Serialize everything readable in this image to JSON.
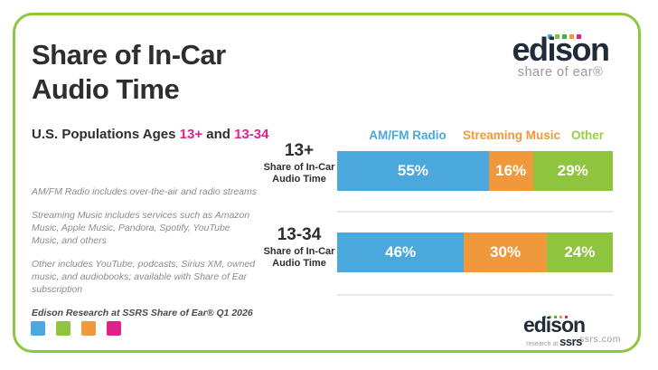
{
  "header": {
    "title_line1": "Share of In-Car",
    "title_line2": "Audio Time",
    "subtitle_prefix": "U.S. Populations Ages ",
    "subtitle_age1": "13+",
    "subtitle_and": " and ",
    "subtitle_age2": "13-34"
  },
  "notes": {
    "amfm": "AM/FM Radio includes over-the-air and radio streams",
    "streaming": "Streaming Music includes services such as Amazon Music, Apple Music, Pandora, Spotify, YouTube Music, and others",
    "other": "Other includes YouTube, podcasts, Sirius XM, owned music, and audiobooks; available with Share of Ear subscription",
    "source": "Edison Research at SSRS Share of Ear® Q1 2026"
  },
  "palette": {
    "blue": "#4AA8DC",
    "orange": "#F0993C",
    "green": "#8FC43E",
    "magenta": "#E0218A",
    "card_border": "#8DC63F",
    "navy": "#222B38",
    "legend_other_green": "#9CCA4D"
  },
  "chart_data": {
    "type": "bar",
    "stacked": true,
    "orientation": "horizontal",
    "title": "Share of In-Car Audio Time",
    "subtitle": "U.S. Populations Ages 13+ and 13-34",
    "value_suffix": "%",
    "xlim": [
      0,
      100
    ],
    "segments": [
      {
        "name": "AM/FM Radio",
        "color": "#4AA8DC"
      },
      {
        "name": "Streaming Music",
        "color": "#F0993C"
      },
      {
        "name": "Other",
        "color": "#8FC43E"
      }
    ],
    "rows": [
      {
        "category": "13+",
        "sublabel": "Share of In-Car Audio Time",
        "values": [
          55,
          16,
          29
        ]
      },
      {
        "category": "13-34",
        "sublabel": "Share of In-Car Audio Time",
        "values": [
          46,
          30,
          24
        ]
      }
    ]
  },
  "logo_top": {
    "brand": "edison",
    "tagline": "share of ear®",
    "dot_colors": [
      "#4AA8DC",
      "#7DC242",
      "#39B54A",
      "#F0993C",
      "#E0218A"
    ]
  },
  "logo_bottom": {
    "brand": "edison",
    "sub_prefix": "research at ",
    "sub_brand": "ssrs",
    "site": "ssrs.com",
    "dot_colors": [
      "#4AA8DC",
      "#7DC242",
      "#39B54A",
      "#F0993C",
      "#E0218A"
    ]
  },
  "footer_swatches": [
    "#4AA8DC",
    "#8FC43E",
    "#F0993C",
    "#E0218A"
  ]
}
